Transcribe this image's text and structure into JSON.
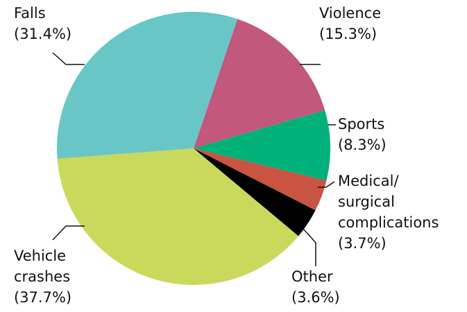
{
  "chart_data": {
    "type": "pie",
    "categories": [
      "Violence",
      "Sports",
      "Medical/ surgical complications",
      "Other",
      "Vehicle crashes",
      "Falls"
    ],
    "values": [
      15.3,
      8.3,
      3.7,
      3.6,
      37.7,
      31.4
    ],
    "value_labels": [
      "(15.3%)",
      "(8.3%)",
      "(3.7%)",
      "(3.6%)",
      "(37.7%)",
      "(31.4%)"
    ],
    "colors": [
      "#c2587b",
      "#00b27a",
      "#c85441",
      "#000000",
      "#c9d95c",
      "#69c6c6"
    ]
  }
}
